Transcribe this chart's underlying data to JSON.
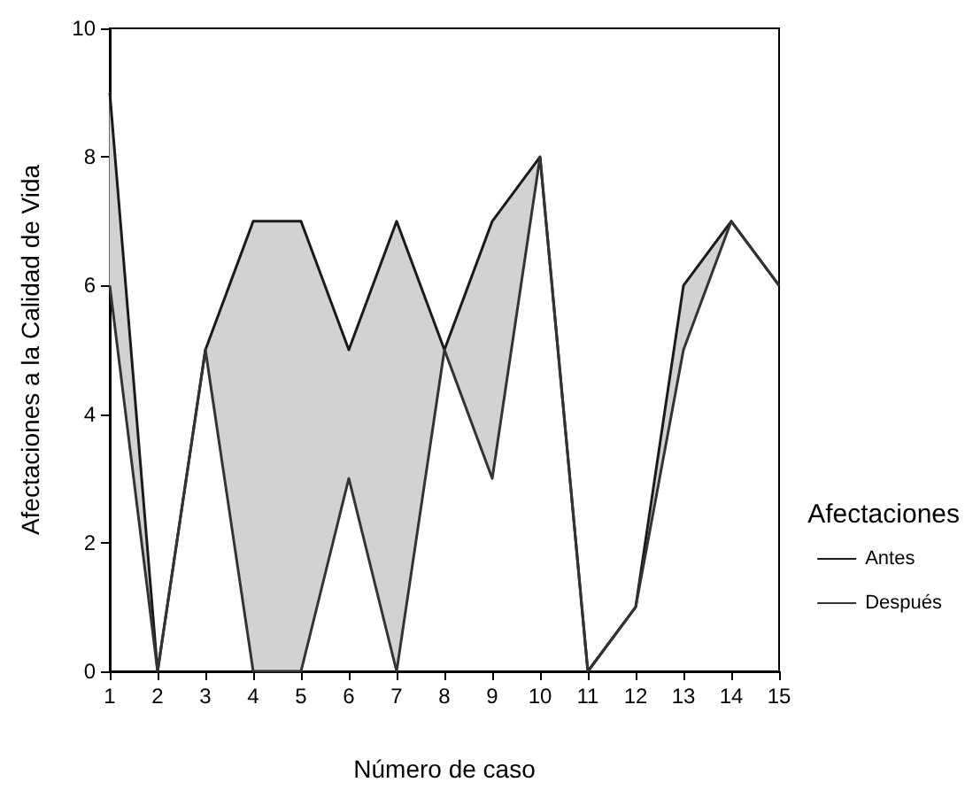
{
  "chart_data": {
    "type": "line",
    "xlabel": "Número de caso",
    "ylabel": "Afectaciones a la Calidad de Vida",
    "legend_title": "Afectaciones",
    "x": [
      1,
      2,
      3,
      4,
      5,
      6,
      7,
      8,
      9,
      10,
      11,
      12,
      13,
      14,
      15
    ],
    "series": [
      {
        "name": "Antes",
        "color": "#1a1a1a",
        "values": [
          9,
          0,
          5,
          7,
          7,
          5,
          7,
          5,
          7,
          8,
          0,
          1,
          6,
          7,
          6
        ],
        "lower": [
          6,
          0,
          5,
          0,
          0,
          3,
          0,
          5,
          3,
          8,
          null,
          1,
          5,
          7,
          null
        ],
        "upper": [
          9,
          0,
          5,
          7,
          7,
          5,
          7,
          5,
          7,
          8,
          null,
          1,
          6,
          7,
          null
        ]
      },
      {
        "name": "Después",
        "color": "#333333",
        "values": [
          6,
          0,
          5,
          0,
          0,
          3,
          0,
          5,
          3,
          8,
          0,
          1,
          5,
          7,
          6
        ]
      }
    ],
    "xlim": [
      1,
      15
    ],
    "xticks": [
      1,
      2,
      3,
      4,
      5,
      6,
      7,
      8,
      9,
      10,
      11,
      12,
      13,
      14,
      15
    ],
    "ylim": [
      0,
      10
    ],
    "yticks": [
      0,
      2,
      4,
      6,
      8,
      10
    ],
    "grid": false,
    "legend": "right",
    "marker": "none",
    "line_style": "solid"
  }
}
